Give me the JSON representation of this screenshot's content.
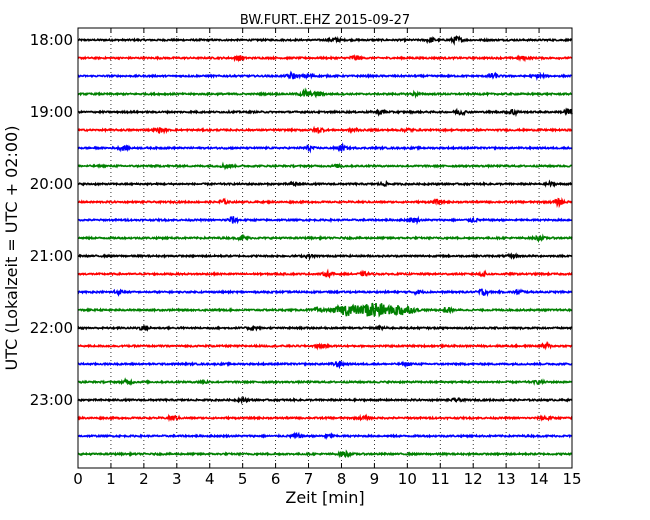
{
  "chart_data": {
    "type": "line",
    "title": "BW.FURT..EHZ 2015-09-27",
    "xlabel": "Zeit  [min]",
    "ylabel": "UTC (Lokalzeit = UTC + 02:00)",
    "xlim": [
      0,
      15
    ],
    "x_ticks": [
      0,
      1,
      2,
      3,
      4,
      5,
      6,
      7,
      8,
      9,
      10,
      11,
      12,
      13,
      14,
      15
    ],
    "y_tick_labels": [
      "18:00",
      "19:00",
      "20:00",
      "21:00",
      "22:00",
      "23:00"
    ],
    "grid": "vertical dotted",
    "colors": [
      "#000000",
      "#ff0000",
      "#0000ff",
      "#008000"
    ],
    "series": [
      {
        "start": "18:00",
        "color": "#000000",
        "events": [
          {
            "t": 7.8,
            "a": 0.25
          },
          {
            "t": 10.7,
            "a": 0.3
          },
          {
            "t": 11.5,
            "a": 0.45
          }
        ]
      },
      {
        "start": "18:15",
        "color": "#ff0000",
        "events": [
          {
            "t": 4.9,
            "a": 0.3
          },
          {
            "t": 8.4,
            "a": 0.35
          },
          {
            "t": 13.5,
            "a": 0.2
          }
        ]
      },
      {
        "start": "18:30",
        "color": "#0000ff",
        "events": [
          {
            "t": 6.5,
            "a": 0.45
          },
          {
            "t": 7.0,
            "a": 0.3
          },
          {
            "t": 12.6,
            "a": 0.35
          },
          {
            "t": 14.0,
            "a": 0.2
          }
        ]
      },
      {
        "start": "18:45",
        "color": "#008000",
        "events": [
          {
            "t": 6.9,
            "a": 0.55
          },
          {
            "t": 7.3,
            "a": 0.35
          },
          {
            "t": 10.2,
            "a": 0.2
          }
        ]
      },
      {
        "start": "19:00",
        "color": "#000000",
        "events": [
          {
            "t": 9.2,
            "a": 0.3
          },
          {
            "t": 11.6,
            "a": 0.35
          },
          {
            "t": 13.2,
            "a": 0.45
          },
          {
            "t": 14.9,
            "a": 0.4
          }
        ]
      },
      {
        "start": "19:15",
        "color": "#ff0000",
        "events": [
          {
            "t": 2.5,
            "a": 0.3
          },
          {
            "t": 7.3,
            "a": 0.4
          },
          {
            "t": 8.4,
            "a": 0.2
          },
          {
            "t": 10.0,
            "a": 0.2
          }
        ]
      },
      {
        "start": "19:30",
        "color": "#0000ff",
        "events": [
          {
            "t": 1.4,
            "a": 0.3
          },
          {
            "t": 7.0,
            "a": 0.3
          },
          {
            "t": 8.0,
            "a": 0.35
          }
        ]
      },
      {
        "start": "19:45",
        "color": "#008000",
        "events": [
          {
            "t": 4.5,
            "a": 0.3
          },
          {
            "t": 7.9,
            "a": 0.2
          }
        ]
      },
      {
        "start": "20:00",
        "color": "#000000",
        "events": [
          {
            "t": 6.6,
            "a": 0.3
          },
          {
            "t": 9.3,
            "a": 0.2
          },
          {
            "t": 14.3,
            "a": 0.25
          }
        ]
      },
      {
        "start": "20:15",
        "color": "#ff0000",
        "events": [
          {
            "t": 4.4,
            "a": 0.3
          },
          {
            "t": 10.9,
            "a": 0.25
          },
          {
            "t": 14.6,
            "a": 0.4
          }
        ]
      },
      {
        "start": "20:30",
        "color": "#0000ff",
        "events": [
          {
            "t": 4.7,
            "a": 0.45
          },
          {
            "t": 10.2,
            "a": 0.3
          },
          {
            "t": 12.0,
            "a": 0.25
          }
        ]
      },
      {
        "start": "20:45",
        "color": "#008000",
        "events": [
          {
            "t": 5.0,
            "a": 0.25
          },
          {
            "t": 14.0,
            "a": 0.25
          }
        ]
      },
      {
        "start": "21:00",
        "color": "#000000",
        "events": [
          {
            "t": 7.0,
            "a": 0.2
          },
          {
            "t": 13.2,
            "a": 0.2
          }
        ]
      },
      {
        "start": "21:15",
        "color": "#ff0000",
        "events": [
          {
            "t": 7.6,
            "a": 0.3
          },
          {
            "t": 8.7,
            "a": 0.2
          },
          {
            "t": 12.3,
            "a": 0.2
          }
        ]
      },
      {
        "start": "21:30",
        "color": "#0000ff",
        "events": [
          {
            "t": 1.2,
            "a": 0.3
          },
          {
            "t": 10.3,
            "a": 0.25
          },
          {
            "t": 12.3,
            "a": 0.45
          },
          {
            "t": 13.4,
            "a": 0.3
          }
        ]
      },
      {
        "start": "21:45",
        "color": "#008000",
        "events": [
          {
            "t": 7.3,
            "a": 0.3
          },
          {
            "t": 8.2,
            "a": 0.8
          },
          {
            "t": 9.0,
            "a": 1.2
          },
          {
            "t": 9.8,
            "a": 0.8
          },
          {
            "t": 11.2,
            "a": 0.4
          }
        ]
      },
      {
        "start": "22:00",
        "color": "#000000",
        "events": [
          {
            "t": 2.0,
            "a": 0.3
          },
          {
            "t": 5.3,
            "a": 0.25
          },
          {
            "t": 9.2,
            "a": 0.2
          }
        ]
      },
      {
        "start": "22:15",
        "color": "#ff0000",
        "events": [
          {
            "t": 7.4,
            "a": 0.25
          },
          {
            "t": 14.2,
            "a": 0.3
          }
        ]
      },
      {
        "start": "22:30",
        "color": "#0000ff",
        "events": [
          {
            "t": 7.9,
            "a": 0.4
          },
          {
            "t": 10.0,
            "a": 0.2
          }
        ]
      },
      {
        "start": "22:45",
        "color": "#008000",
        "events": [
          {
            "t": 1.5,
            "a": 0.3
          },
          {
            "t": 3.8,
            "a": 0.2
          },
          {
            "t": 14.0,
            "a": 0.2
          }
        ]
      },
      {
        "start": "23:00",
        "color": "#000000",
        "events": [
          {
            "t": 5.0,
            "a": 0.2
          },
          {
            "t": 11.5,
            "a": 0.2
          }
        ]
      },
      {
        "start": "23:15",
        "color": "#ff0000",
        "events": [
          {
            "t": 2.9,
            "a": 0.3
          },
          {
            "t": 8.7,
            "a": 0.2
          },
          {
            "t": 14.2,
            "a": 0.35
          }
        ]
      },
      {
        "start": "23:30",
        "color": "#0000ff",
        "events": [
          {
            "t": 6.6,
            "a": 0.3
          },
          {
            "t": 7.6,
            "a": 0.2
          }
        ]
      },
      {
        "start": "23:45",
        "color": "#008000",
        "events": [
          {
            "t": 8.1,
            "a": 0.35
          }
        ]
      }
    ]
  }
}
